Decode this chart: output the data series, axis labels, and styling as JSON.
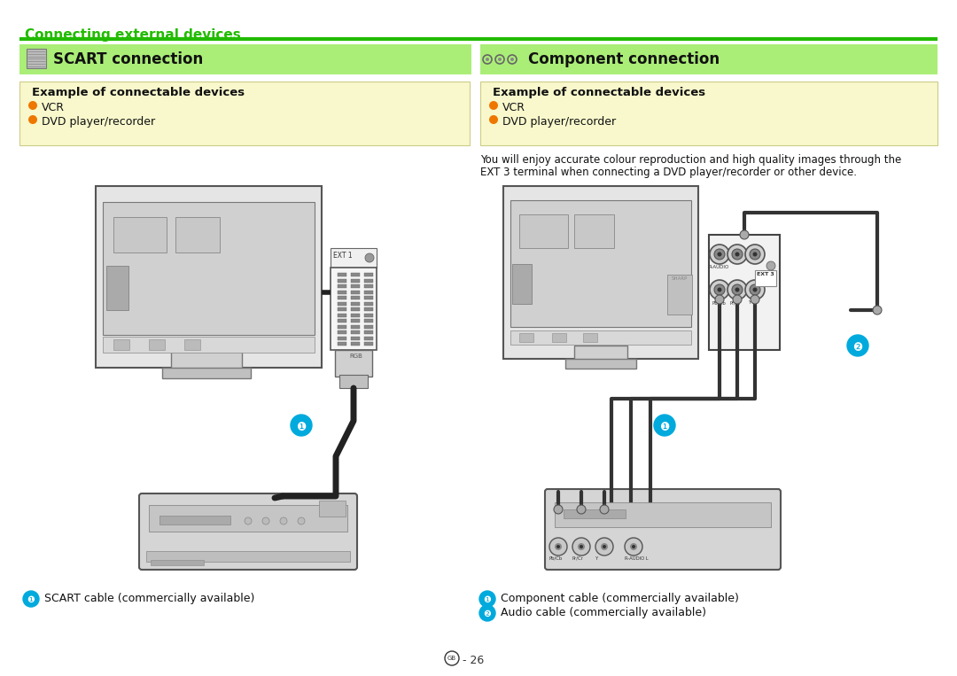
{
  "page_bg": "#ffffff",
  "top_heading": "Connecting external devices",
  "top_heading_color": "#22bb00",
  "green_line_color": "#22bb00",
  "left_header_bg": "#aaee77",
  "right_header_bg": "#aaee77",
  "box_bg": "#f8f8cc",
  "dot_color": "#ee7700",
  "scart_title": "SCART connection",
  "comp_title": "Component connection",
  "box_title": "Example of connectable devices",
  "box_items": [
    "VCR",
    "DVD player/recorder"
  ],
  "desc_text1": "You will enjoy accurate colour reproduction and high quality images through the",
  "desc_text2": "EXT 3 terminal when connecting a DVD player/recorder or other device.",
  "caption_left": "SCART cable (commercially available)",
  "caption_right1": "Component cable (commercially available)",
  "caption_right2": "Audio cable (commercially available)",
  "page_num": "GB - 26",
  "dark": "#333333",
  "mid": "#888888",
  "light": "#cccccc",
  "lighter": "#e0e0e0",
  "cable_dark": "#222222",
  "cyan_circle": "#00aadd"
}
